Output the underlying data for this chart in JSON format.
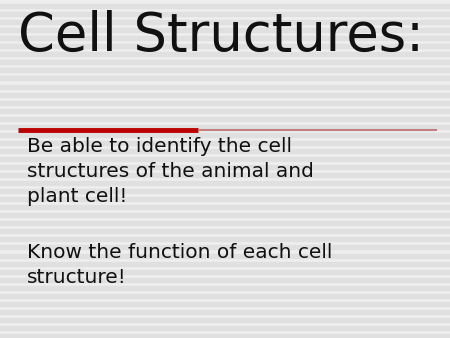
{
  "title": "Cell Structures:",
  "title_fontsize": 38,
  "title_color": "#111111",
  "line_color": "#bb0000",
  "line_lw": 3.0,
  "bullet1": "Be able to identify the cell\nstructures of the animal and\nplant cell!",
  "bullet2": "Know the function of each cell\nstructure!",
  "body_fontsize": 14.5,
  "body_color": "#111111",
  "background_color": "#eeeeee",
  "stripe_color": "#e0e0e0",
  "stripe_count": 42
}
